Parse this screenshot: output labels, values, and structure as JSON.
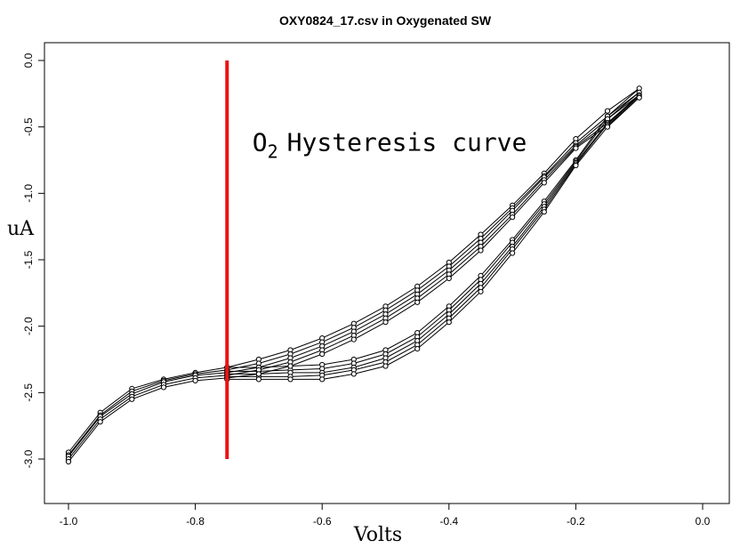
{
  "chart_data": {
    "type": "line",
    "title": "OXY0824_17.csv in Oxygenated SW",
    "xlabel": "Volts",
    "ylabel": "uA",
    "xlim": [
      -1.0,
      0.0
    ],
    "ylim": [
      -3.35,
      0.12
    ],
    "x_reversed": false,
    "y_ticks": [
      "0.0",
      "-0.5",
      "-1.0",
      "-1.5",
      "-2.0",
      "-2.5",
      "-3.0"
    ],
    "x_ticks": [
      "-1.0",
      "-0.8",
      "-0.6",
      "-0.4",
      "-0.2",
      "0.0"
    ],
    "grid": false,
    "annotation": {
      "main": "O",
      "subscript": "2",
      "rest": "Hysteresis curve",
      "x": -0.71,
      "y": -0.6
    },
    "vline": {
      "x": -0.75,
      "y_from": 0.0,
      "y_to": -3.0,
      "color": "#ee1111"
    },
    "marker": "open-circle",
    "line_color": "#000000",
    "series": [
      {
        "x": [
          -1.0,
          -0.95,
          -0.9,
          -0.85,
          -0.8,
          -0.75,
          -0.7,
          -0.65,
          -0.6,
          -0.55,
          -0.5,
          -0.45,
          -0.4,
          -0.35,
          -0.3,
          -0.25,
          -0.2,
          -0.15,
          -0.1,
          -0.15,
          -0.2,
          -0.25,
          -0.3,
          -0.35,
          -0.4,
          -0.45,
          -0.5,
          -0.55,
          -0.6,
          -0.65,
          -0.7,
          -0.75
        ],
        "y": [
          -2.95,
          -2.65,
          -2.47,
          -2.4,
          -2.35,
          -2.31,
          -2.25,
          -2.18,
          -2.09,
          -1.98,
          -1.85,
          -1.7,
          -1.52,
          -1.31,
          -1.09,
          -0.85,
          -0.59,
          -0.38,
          -0.21,
          -0.42,
          -0.75,
          -1.06,
          -1.35,
          -1.62,
          -1.85,
          -2.05,
          -2.18,
          -2.25,
          -2.29,
          -2.3,
          -2.31,
          -2.31
        ]
      },
      {
        "x": [
          -1.0,
          -0.95,
          -0.9,
          -0.85,
          -0.8,
          -0.75,
          -0.7,
          -0.65,
          -0.6,
          -0.55,
          -0.5,
          -0.45,
          -0.4,
          -0.35,
          -0.3,
          -0.25,
          -0.2,
          -0.15,
          -0.1,
          -0.15,
          -0.2,
          -0.25,
          -0.3,
          -0.35,
          -0.4,
          -0.45,
          -0.5,
          -0.55,
          -0.6,
          -0.65,
          -0.7,
          -0.75
        ],
        "y": [
          -2.97,
          -2.67,
          -2.49,
          -2.41,
          -2.36,
          -2.33,
          -2.28,
          -2.21,
          -2.12,
          -2.01,
          -1.88,
          -1.73,
          -1.55,
          -1.34,
          -1.11,
          -0.87,
          -0.62,
          -0.42,
          -0.24,
          -0.44,
          -0.76,
          -1.08,
          -1.37,
          -1.65,
          -1.88,
          -2.08,
          -2.21,
          -2.28,
          -2.32,
          -2.33,
          -2.34,
          -2.34
        ]
      },
      {
        "x": [
          -1.0,
          -0.95,
          -0.9,
          -0.85,
          -0.8,
          -0.75,
          -0.7,
          -0.65,
          -0.6,
          -0.55,
          -0.5,
          -0.45,
          -0.4,
          -0.35,
          -0.3,
          -0.25,
          -0.2,
          -0.15,
          -0.1,
          -0.15,
          -0.2,
          -0.25,
          -0.3,
          -0.35,
          -0.4,
          -0.45,
          -0.5,
          -0.55,
          -0.6,
          -0.65,
          -0.7,
          -0.75
        ],
        "y": [
          -2.98,
          -2.68,
          -2.51,
          -2.42,
          -2.37,
          -2.35,
          -2.31,
          -2.24,
          -2.15,
          -2.04,
          -1.91,
          -1.76,
          -1.58,
          -1.37,
          -1.13,
          -0.88,
          -0.64,
          -0.44,
          -0.26,
          -0.47,
          -0.77,
          -1.1,
          -1.4,
          -1.68,
          -1.91,
          -2.11,
          -2.24,
          -2.31,
          -2.35,
          -2.35,
          -2.36,
          -2.36
        ]
      },
      {
        "x": [
          -1.0,
          -0.95,
          -0.9,
          -0.85,
          -0.8,
          -0.75,
          -0.7,
          -0.65,
          -0.6,
          -0.55,
          -0.5,
          -0.45,
          -0.4,
          -0.35,
          -0.3,
          -0.25,
          -0.2,
          -0.15,
          -0.1,
          -0.15,
          -0.2,
          -0.25,
          -0.3,
          -0.35,
          -0.4,
          -0.45,
          -0.5,
          -0.55,
          -0.6,
          -0.65,
          -0.7,
          -0.75
        ],
        "y": [
          -3.0,
          -2.7,
          -2.53,
          -2.44,
          -2.39,
          -2.37,
          -2.33,
          -2.27,
          -2.18,
          -2.07,
          -1.94,
          -1.79,
          -1.61,
          -1.4,
          -1.16,
          -0.9,
          -0.65,
          -0.47,
          -0.27,
          -0.48,
          -0.78,
          -1.12,
          -1.42,
          -1.71,
          -1.94,
          -2.14,
          -2.27,
          -2.33,
          -2.37,
          -2.38,
          -2.38,
          -2.38
        ]
      },
      {
        "x": [
          -1.0,
          -0.95,
          -0.9,
          -0.85,
          -0.8,
          -0.75,
          -0.7,
          -0.65,
          -0.6,
          -0.55,
          -0.5,
          -0.45,
          -0.4,
          -0.35,
          -0.3,
          -0.25,
          -0.2,
          -0.15,
          -0.1,
          -0.15,
          -0.2,
          -0.25,
          -0.3,
          -0.35,
          -0.4,
          -0.45,
          -0.5,
          -0.55,
          -0.6,
          -0.65,
          -0.7,
          -0.75
        ],
        "y": [
          -3.02,
          -2.72,
          -2.55,
          -2.46,
          -2.41,
          -2.39,
          -2.36,
          -2.3,
          -2.21,
          -2.1,
          -1.97,
          -1.82,
          -1.64,
          -1.43,
          -1.18,
          -0.92,
          -0.66,
          -0.49,
          -0.28,
          -0.5,
          -0.79,
          -1.14,
          -1.45,
          -1.74,
          -1.97,
          -2.17,
          -2.3,
          -2.36,
          -2.4,
          -2.4,
          -2.4,
          -2.4
        ]
      }
    ]
  }
}
